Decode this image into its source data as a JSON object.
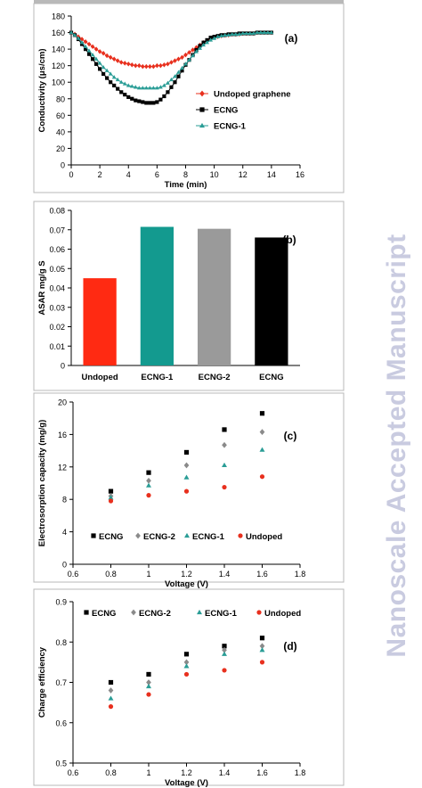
{
  "header_rule": "",
  "watermark": "Nanoscale Accepted Manuscript",
  "colors": {
    "undoped": "#e8301e",
    "ecng": "#000000",
    "ecng1": "#2a9d96",
    "ecng2": "#8a8a8a"
  },
  "chart_data": [
    {
      "panel": "(a)",
      "type": "line",
      "xlabel": "Time (min)",
      "ylabel": "Conductivity (μs/cm)",
      "xlim": [
        0,
        16
      ],
      "ylim": [
        0,
        180
      ],
      "xticks": [
        0,
        2,
        4,
        6,
        8,
        10,
        12,
        14,
        16
      ],
      "yticks": [
        0,
        20,
        40,
        60,
        80,
        100,
        120,
        140,
        160,
        180
      ],
      "legend": "center-right",
      "series": [
        {
          "name": "Undoped graphene",
          "color": "#e8301e",
          "marker": "diamond",
          "x": [
            0,
            0.25,
            0.5,
            0.75,
            1,
            1.25,
            1.5,
            1.75,
            2,
            2.25,
            2.5,
            2.75,
            3,
            3.25,
            3.5,
            3.75,
            4,
            4.25,
            4.5,
            4.75,
            5,
            5.25,
            5.5,
            5.75,
            6,
            6.25,
            6.5,
            6.75,
            7,
            7.25,
            7.5,
            7.75,
            8,
            8.25,
            8.5,
            8.75,
            9,
            9.25,
            9.5,
            9.75,
            10,
            10.25,
            10.5,
            10.75,
            11,
            11.25,
            11.5,
            11.75,
            12,
            12.25,
            12.5,
            12.75,
            13,
            13.25,
            13.5,
            13.75,
            14
          ],
          "y": [
            160,
            158,
            155,
            152,
            149,
            146,
            143,
            140,
            137,
            135,
            132,
            130,
            128,
            126,
            124,
            123,
            122,
            121,
            120,
            120,
            119,
            119,
            119,
            119,
            120,
            120,
            121,
            122,
            124,
            126,
            128,
            130,
            133,
            136,
            139,
            142,
            145,
            148,
            150,
            152,
            154,
            155,
            156,
            157,
            157,
            158,
            158,
            158,
            159,
            159,
            159,
            159,
            160,
            160,
            160,
            160,
            160
          ]
        },
        {
          "name": "ECNG",
          "color": "#000000",
          "marker": "square",
          "x": [
            0,
            0.25,
            0.5,
            0.75,
            1,
            1.25,
            1.5,
            1.75,
            2,
            2.25,
            2.5,
            2.75,
            3,
            3.25,
            3.5,
            3.75,
            4,
            4.25,
            4.5,
            4.75,
            5,
            5.25,
            5.5,
            5.75,
            6,
            6.25,
            6.5,
            6.75,
            7,
            7.25,
            7.5,
            7.75,
            8,
            8.25,
            8.5,
            8.75,
            9,
            9.25,
            9.5,
            9.75,
            10,
            10.25,
            10.5,
            10.75,
            11,
            11.25,
            11.5,
            11.75,
            12,
            12.25,
            12.5,
            12.75,
            13,
            13.25,
            13.5,
            13.75,
            14
          ],
          "y": [
            160,
            157,
            152,
            146,
            140,
            134,
            128,
            122,
            116,
            110,
            105,
            100,
            96,
            92,
            88,
            85,
            82,
            80,
            78,
            77,
            76,
            75,
            75,
            75,
            76,
            79,
            83,
            88,
            94,
            100,
            107,
            114,
            121,
            127,
            133,
            139,
            144,
            148,
            151,
            154,
            155,
            156,
            157,
            157,
            158,
            158,
            158,
            159,
            159,
            159,
            159,
            159,
            160,
            160,
            160,
            160,
            160
          ]
        },
        {
          "name": "ECNG-1",
          "color": "#2a9d96",
          "marker": "triangle",
          "x": [
            0,
            0.25,
            0.5,
            0.75,
            1,
            1.25,
            1.5,
            1.75,
            2,
            2.25,
            2.5,
            2.75,
            3,
            3.25,
            3.5,
            3.75,
            4,
            4.25,
            4.5,
            4.75,
            5,
            5.25,
            5.5,
            5.75,
            6,
            6.25,
            6.5,
            6.75,
            7,
            7.25,
            7.5,
            7.75,
            8,
            8.25,
            8.5,
            8.75,
            9,
            9.25,
            9.5,
            9.75,
            10,
            10.25,
            10.5,
            10.75,
            11,
            11.25,
            11.5,
            11.75,
            12,
            12.25,
            12.5,
            12.75,
            13,
            13.25,
            13.5,
            13.75,
            14
          ],
          "y": [
            160,
            157,
            153,
            148,
            143,
            138,
            133,
            128,
            123,
            118,
            114,
            110,
            106,
            103,
            100,
            98,
            96,
            95,
            94,
            93,
            93,
            93,
            93,
            93,
            93,
            94,
            96,
            99,
            103,
            107,
            112,
            117,
            122,
            127,
            132,
            137,
            141,
            145,
            148,
            151,
            153,
            155,
            156,
            157,
            157,
            158,
            158,
            158,
            159,
            159,
            159,
            159,
            160,
            160,
            160,
            160,
            160
          ]
        }
      ]
    },
    {
      "panel": "(b)",
      "type": "bar",
      "xlabel": "",
      "ylabel": "ASAR mg/g S",
      "ylim": [
        0,
        0.08
      ],
      "yticks": [
        0,
        0.01,
        0.02,
        0.03,
        0.04,
        0.05,
        0.06,
        0.07,
        0.08
      ],
      "categories": [
        "Undoped",
        "ECNG-1",
        "ECNG-2",
        "ECNG"
      ],
      "values": [
        0.045,
        0.0715,
        0.0705,
        0.066
      ],
      "colors": [
        "#ff2a12",
        "#139a8f",
        "#9a9a9a",
        "#000000"
      ]
    },
    {
      "panel": "(c)",
      "type": "scatter",
      "xlabel": "Voltage (V)",
      "ylabel": "Electrosorption capacity (mg/g)",
      "xlim": [
        0.6,
        1.8
      ],
      "ylim": [
        0,
        20
      ],
      "xticks": [
        0.6,
        0.8,
        1,
        1.2,
        1.4,
        1.6,
        1.8
      ],
      "yticks": [
        0,
        4,
        8,
        12,
        16,
        20
      ],
      "legend": "bottom",
      "x": [
        0.8,
        1,
        1.2,
        1.4,
        1.6
      ],
      "series": [
        {
          "name": "ECNG",
          "color": "#000000",
          "marker": "square",
          "values": [
            9.0,
            11.3,
            13.8,
            16.6,
            18.6
          ]
        },
        {
          "name": "ECNG-2",
          "color": "#8a8a8a",
          "marker": "diamond",
          "values": [
            8.4,
            10.3,
            12.2,
            14.7,
            16.3
          ]
        },
        {
          "name": "ECNG-1",
          "color": "#2a9d96",
          "marker": "triangle",
          "values": [
            8.2,
            9.7,
            10.7,
            12.2,
            14.1
          ]
        },
        {
          "name": "Undoped",
          "color": "#e8301e",
          "marker": "circle",
          "values": [
            7.8,
            8.5,
            9.0,
            9.5,
            10.8
          ]
        }
      ]
    },
    {
      "panel": "(d)",
      "type": "scatter",
      "xlabel": "Voltage (V)",
      "ylabel": "Charge efficiency",
      "xlim": [
        0.6,
        1.8
      ],
      "ylim": [
        0.5,
        0.9
      ],
      "xticks": [
        0.6,
        0.8,
        1,
        1.2,
        1.4,
        1.6,
        1.8
      ],
      "yticks": [
        0.5,
        0.6,
        0.7,
        0.8,
        0.9
      ],
      "legend": "top",
      "x": [
        0.8,
        1,
        1.2,
        1.4,
        1.6
      ],
      "series": [
        {
          "name": "ECNG",
          "color": "#000000",
          "marker": "square",
          "values": [
            0.7,
            0.72,
            0.77,
            0.79,
            0.81
          ]
        },
        {
          "name": "ECNG-2",
          "color": "#8a8a8a",
          "marker": "diamond",
          "values": [
            0.68,
            0.7,
            0.75,
            0.78,
            0.79
          ]
        },
        {
          "name": "ECNG-1",
          "color": "#2a9d96",
          "marker": "triangle",
          "values": [
            0.66,
            0.69,
            0.74,
            0.77,
            0.78
          ]
        },
        {
          "name": "Undoped",
          "color": "#e8301e",
          "marker": "circle",
          "values": [
            0.64,
            0.67,
            0.72,
            0.73,
            0.75
          ]
        }
      ]
    }
  ]
}
